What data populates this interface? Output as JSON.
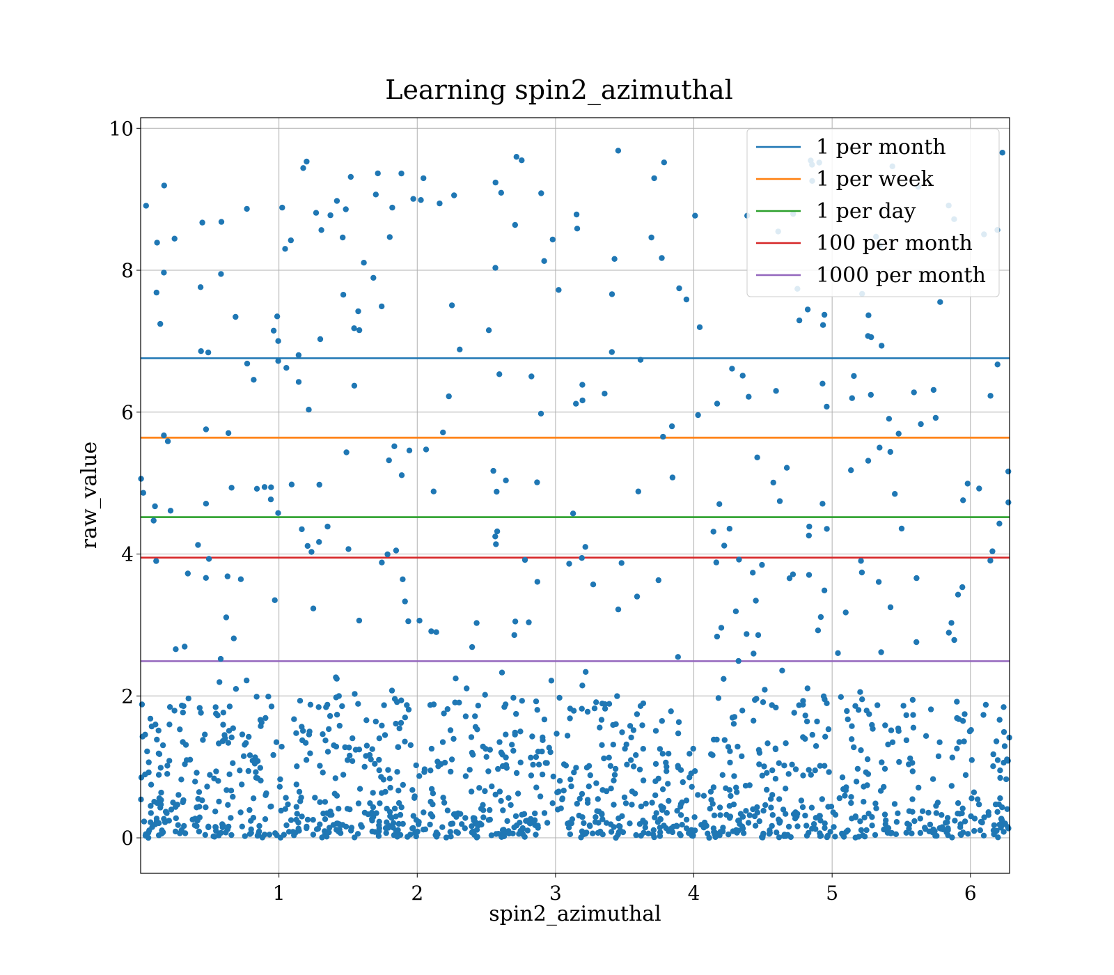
{
  "chart_data": {
    "type": "scatter",
    "title": "Learning spin2_azimuthal",
    "xlabel": "spin2_azimuthal",
    "ylabel": "raw_value",
    "xlim": [
      0.0,
      6.283
    ],
    "ylim": [
      -0.5,
      10.15
    ],
    "x_ticks": [
      1,
      2,
      3,
      4,
      5,
      6
    ],
    "y_ticks": [
      0,
      2,
      4,
      6,
      8,
      10
    ],
    "grid": true,
    "legend_position": "top-right",
    "point_color": "#1f77b4",
    "point_count": 1500,
    "point_seed": 20240611,
    "hlines": [
      {
        "name": "1 per month",
        "y": 6.76,
        "color": "#1f77b4"
      },
      {
        "name": "1 per week",
        "y": 5.64,
        "color": "#ff7f0e"
      },
      {
        "name": "1 per day",
        "y": 4.52,
        "color": "#2ca02c"
      },
      {
        "name": "100 per month",
        "y": 3.95,
        "color": "#d62728"
      },
      {
        "name": "1000 per month",
        "y": 2.49,
        "color": "#9467bd"
      }
    ]
  }
}
